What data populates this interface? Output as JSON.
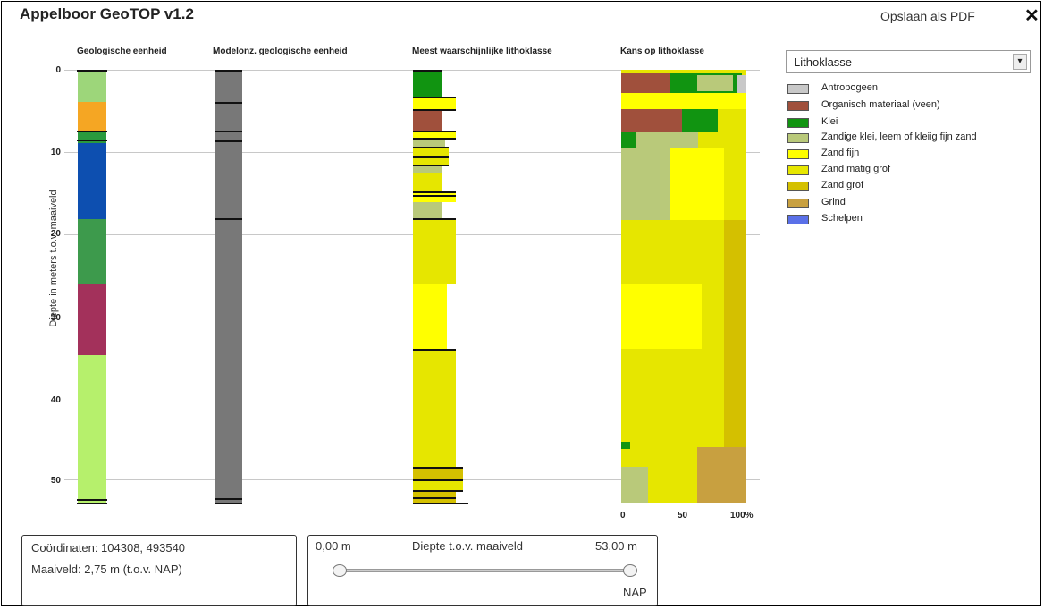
{
  "app": {
    "title": "Appelboor GeoTOP v1.2",
    "pdf_link": "Opslaan als PDF",
    "close_symbol": "✕"
  },
  "columns": {
    "geologic": "Geologische eenheid",
    "model": "Modelonz. geologische eenheid",
    "litho": "Meest waarschijnlijke lithoklasse",
    "chance": "Kans op lithoklasse"
  },
  "yaxis": {
    "label": "Diepte in meters t.o.v. maaiveld",
    "ticks": [
      "0",
      "10",
      "20",
      "30",
      "40",
      "50"
    ]
  },
  "xaxis": {
    "ticks": [
      "0",
      "50",
      "100%"
    ]
  },
  "colors": {
    "antropogeen": "#c8c8c8",
    "organisch": "#a0503c",
    "klei": "#119411",
    "zandige_klei": "#b9c97a",
    "zand_fijn": "#ffff00",
    "zand_matig": "#e6e600",
    "zand_grof": "#d4c000",
    "grind": "#c8a040",
    "schelpen": "#5a70e8"
  },
  "dropdown": {
    "value": "Lithoklasse",
    "arrow": "▾"
  },
  "legend": [
    {
      "label": "Antropogeen",
      "color": "#c8c8c8"
    },
    {
      "label": "Organisch materiaal (veen)",
      "color": "#a0503c"
    },
    {
      "label": "Klei",
      "color": "#119411"
    },
    {
      "label": "Zandige klei, leem of kleiig fijn zand",
      "color": "#b9c97a"
    },
    {
      "label": "Zand fijn",
      "color": "#ffff00"
    },
    {
      "label": "Zand matig grof",
      "color": "#e6e600"
    },
    {
      "label": "Zand grof",
      "color": "#d4c000"
    },
    {
      "label": "Grind",
      "color": "#c8a040"
    },
    {
      "label": "Schelpen",
      "color": "#5a70e8"
    }
  ],
  "info": {
    "coords": "Coördinaten: 104308, 493540",
    "maaiveld": "Maaiveld: 2,75 m (t.o.v. NAP)"
  },
  "slider": {
    "min": "0,00 m",
    "label": "Diepte t.o.v. maaiveld",
    "max": "53,00 m",
    "nap": "NAP"
  }
}
